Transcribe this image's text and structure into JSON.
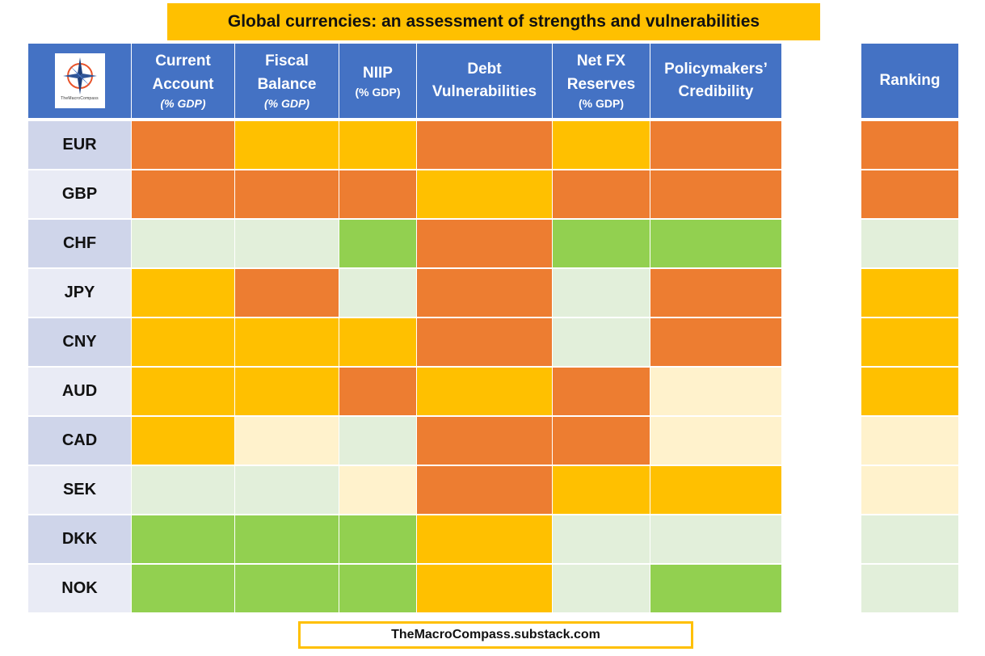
{
  "title": "Global currencies: an assessment of strengths and vulnerabilities",
  "logo": {
    "text": "TheMacroCompass"
  },
  "columns": [
    {
      "key": "current_account",
      "line1": "Current",
      "line2": "Account",
      "sub": "(% GDP)",
      "sub_style": "italic"
    },
    {
      "key": "fiscal_balance",
      "line1": "Fiscal",
      "line2": "Balance",
      "sub": "(% GDP)",
      "sub_style": "italic"
    },
    {
      "key": "niip",
      "line1": "NIIP",
      "line2": "",
      "sub": "(% GDP)",
      "sub_style": "upright"
    },
    {
      "key": "debt",
      "line1": "Debt",
      "line2": "Vulnerabilities",
      "sub": "",
      "sub_style": ""
    },
    {
      "key": "net_fx",
      "line1": "Net FX",
      "line2": "Reserves",
      "sub": "(% GDP)",
      "sub_style": "upright"
    },
    {
      "key": "credibility",
      "line1": "Policymakers’",
      "line2": "Credibility",
      "sub": "",
      "sub_style": ""
    }
  ],
  "ranking_header": "Ranking",
  "footer": "TheMacroCompass.substack.com",
  "colors": {
    "header_blue": "#4472c4",
    "title_gold": "#ffc000",
    "row_label_dark": "#cfd5ea",
    "row_label_light": "#e9ebf5",
    "levels": {
      "weak": "#ed7d31",
      "vulnerable": "#ffc000",
      "neutral": "#fff2cc",
      "solid": "#e2efda",
      "strong": "#92d050"
    }
  },
  "chart_data": {
    "type": "heatmap",
    "title": "Global currencies: an assessment of strengths and vulnerabilities",
    "scale": [
      "weak",
      "vulnerable",
      "neutral",
      "solid",
      "strong"
    ],
    "categories": [
      "Current Account (% GDP)",
      "Fiscal Balance (% GDP)",
      "NIIP (% GDP)",
      "Debt Vulnerabilities",
      "Net FX Reserves (% GDP)",
      "Policymakers’ Credibility"
    ],
    "rows": [
      {
        "currency": "EUR",
        "values": [
          "weak",
          "vulnerable",
          "vulnerable",
          "weak",
          "vulnerable",
          "weak"
        ],
        "ranking": "weak"
      },
      {
        "currency": "GBP",
        "values": [
          "weak",
          "weak",
          "weak",
          "vulnerable",
          "weak",
          "weak"
        ],
        "ranking": "weak"
      },
      {
        "currency": "CHF",
        "values": [
          "solid",
          "solid",
          "strong",
          "weak",
          "strong",
          "strong"
        ],
        "ranking": "solid"
      },
      {
        "currency": "JPY",
        "values": [
          "vulnerable",
          "weak",
          "solid",
          "weak",
          "solid",
          "weak"
        ],
        "ranking": "vulnerable"
      },
      {
        "currency": "CNY",
        "values": [
          "vulnerable",
          "vulnerable",
          "vulnerable",
          "weak",
          "solid",
          "weak"
        ],
        "ranking": "vulnerable"
      },
      {
        "currency": "AUD",
        "values": [
          "vulnerable",
          "vulnerable",
          "weak",
          "vulnerable",
          "weak",
          "neutral"
        ],
        "ranking": "vulnerable"
      },
      {
        "currency": "CAD",
        "values": [
          "vulnerable",
          "neutral",
          "solid",
          "weak",
          "weak",
          "neutral"
        ],
        "ranking": "neutral"
      },
      {
        "currency": "SEK",
        "values": [
          "solid",
          "solid",
          "neutral",
          "weak",
          "vulnerable",
          "vulnerable"
        ],
        "ranking": "neutral"
      },
      {
        "currency": "DKK",
        "values": [
          "strong",
          "strong",
          "strong",
          "vulnerable",
          "solid",
          "solid"
        ],
        "ranking": "solid"
      },
      {
        "currency": "NOK",
        "values": [
          "strong",
          "strong",
          "strong",
          "vulnerable",
          "solid",
          "strong"
        ],
        "ranking": "solid"
      }
    ]
  }
}
